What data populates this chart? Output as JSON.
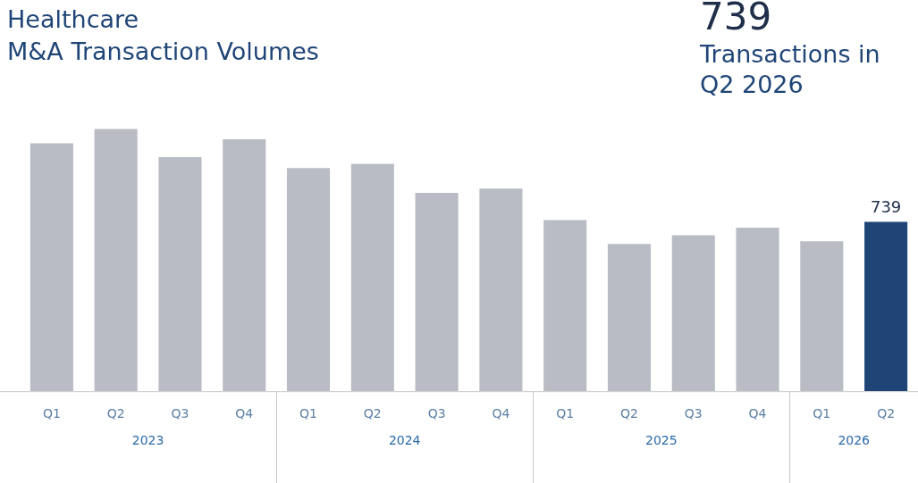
{
  "chart_data": {
    "type": "bar",
    "title": "Healthcare\nM&A Transaction Volumes",
    "subtitle": "739 Transactions in Q2 2026",
    "categories": [
      "Q1",
      "Q2",
      "Q3",
      "Q4",
      "Q1",
      "Q2",
      "Q3",
      "Q4",
      "Q1",
      "Q2",
      "Q3",
      "Q4",
      "Q1",
      "Q2"
    ],
    "values": [
      1081,
      1144,
      1021,
      1099,
      973,
      992,
      865,
      884,
      746,
      642,
      680,
      713,
      654,
      739
    ],
    "colors": [
      "#b9bcc4",
      "#b9bcc4",
      "#b9bcc4",
      "#b9bcc4",
      "#b9bcc4",
      "#b9bcc4",
      "#b9bcc4",
      "#b9bcc4",
      "#b9bcc4",
      "#b9bcc4",
      "#b9bcc4",
      "#b9bcc4",
      "#b9bcc4",
      "#1f4577"
    ],
    "value_labels": [
      null,
      null,
      null,
      null,
      null,
      null,
      null,
      null,
      null,
      null,
      null,
      null,
      null,
      "739"
    ],
    "annotations": [
      "2023",
      "2024",
      "2025",
      "2026"
    ],
    "grid": false,
    "legend": false
  }
}
